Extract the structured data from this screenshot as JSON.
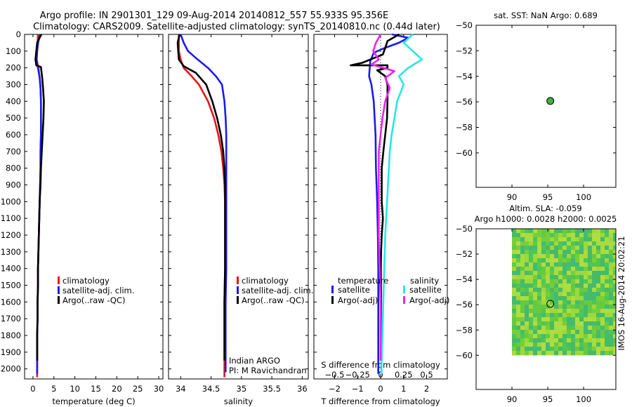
{
  "header": {
    "title_line1": "Argo profile: IN 2901301_129 09-Aug-2014 20140812_557 55.933S 95.356E",
    "title_line2": "Climatology: CARS2009. Satellite-adjusted climatology: synTS_20140810.nc (0.44d later)"
  },
  "colors": {
    "climatology": "#e8141a",
    "satellite": "#1a1aee",
    "argo": "#000000",
    "sat_diff": "#28e6e6",
    "argo_diff": "#ee22ee",
    "marker": "#3cb43c"
  },
  "chart_data": [
    {
      "id": "temperature",
      "type": "line",
      "xlabel": "temperature (deg C)",
      "ylabel": "",
      "xlim": [
        -2,
        31
      ],
      "ylim": [
        2060,
        0
      ],
      "xticks": [
        0,
        5,
        10,
        15,
        20,
        25,
        30
      ],
      "yticks": [
        0,
        100,
        200,
        300,
        400,
        500,
        600,
        700,
        800,
        900,
        1000,
        1100,
        1200,
        1300,
        1400,
        1500,
        1600,
        1700,
        1800,
        1900,
        2000
      ],
      "legend": [
        "climatology",
        "satellite-adj. clim.",
        "Argo(..raw -QC)"
      ],
      "legend_position": "lower-center",
      "series": [
        {
          "name": "climatology",
          "color_key": "climatology",
          "points": [
            [
              1.2,
              0
            ],
            [
              1.1,
              50
            ],
            [
              1.0,
              100
            ],
            [
              0.9,
              150
            ],
            [
              1.3,
              200
            ],
            [
              1.6,
              260
            ],
            [
              1.8,
              320
            ],
            [
              1.9,
              400
            ],
            [
              1.9,
              500
            ],
            [
              1.9,
              600
            ],
            [
              1.8,
              700
            ],
            [
              1.8,
              800
            ],
            [
              1.7,
              900
            ],
            [
              1.6,
              1000
            ],
            [
              1.5,
              1100
            ],
            [
              1.4,
              1200
            ],
            [
              1.3,
              1300
            ],
            [
              1.2,
              1400
            ],
            [
              1.2,
              1500
            ],
            [
              1.1,
              1600
            ],
            [
              1.1,
              1700
            ],
            [
              1.0,
              1800
            ],
            [
              1.0,
              1900
            ],
            [
              1.0,
              2000
            ],
            [
              1.0,
              2050
            ]
          ]
        },
        {
          "name": "satellite-adj. clim.",
          "color_key": "satellite",
          "points": [
            [
              1.7,
              0
            ],
            [
              1.3,
              40
            ],
            [
              1.0,
              100
            ],
            [
              0.8,
              160
            ],
            [
              1.2,
              200
            ],
            [
              1.6,
              260
            ],
            [
              1.8,
              320
            ],
            [
              1.9,
              400
            ],
            [
              1.9,
              500
            ],
            [
              1.9,
              600
            ],
            [
              1.8,
              700
            ],
            [
              1.8,
              800
            ],
            [
              1.7,
              900
            ],
            [
              1.6,
              1000
            ],
            [
              1.5,
              1100
            ],
            [
              1.4,
              1200
            ],
            [
              1.3,
              1300
            ],
            [
              1.2,
              1400
            ],
            [
              1.2,
              1500
            ],
            [
              1.1,
              1600
            ],
            [
              1.1,
              1700
            ],
            [
              1.0,
              1800
            ],
            [
              1.0,
              1900
            ],
            [
              1.0,
              2000
            ],
            [
              1.0,
              2030
            ]
          ]
        },
        {
          "name": "Argo(..raw -QC)",
          "color_key": "argo",
          "points": [
            [
              2.0,
              0
            ],
            [
              1.0,
              50
            ],
            [
              0.8,
              100
            ],
            [
              0.6,
              150
            ],
            [
              0.8,
              185
            ],
            [
              1.9,
              195
            ],
            [
              2.2,
              260
            ],
            [
              2.4,
              320
            ],
            [
              2.6,
              400
            ],
            [
              2.5,
              500
            ],
            [
              2.3,
              600
            ],
            [
              2.1,
              700
            ],
            [
              1.9,
              800
            ],
            [
              1.8,
              900
            ],
            [
              1.6,
              1000
            ],
            [
              1.5,
              1100
            ],
            [
              1.4,
              1200
            ],
            [
              1.3,
              1300
            ],
            [
              1.2,
              1400
            ],
            [
              1.2,
              1500
            ],
            [
              1.1,
              1600
            ],
            [
              1.1,
              1700
            ],
            [
              1.0,
              1800
            ],
            [
              1.0,
              1900
            ],
            [
              1.0,
              1950
            ]
          ]
        }
      ]
    },
    {
      "id": "salinity",
      "type": "line",
      "xlabel": "salinity",
      "ylabel": "",
      "xlim": [
        33.8,
        36.1
      ],
      "ylim": [
        2060,
        0
      ],
      "xticks": [
        34,
        34.5,
        35,
        35.5,
        36
      ],
      "legend": [
        "climatology",
        "satellite-adj. clim.",
        "Argo(..raw -QC)"
      ],
      "legend_position": "lower-right",
      "annotation": [
        "Indian ARGO",
        "PI: M Ravichandran"
      ],
      "series": [
        {
          "name": "climatology",
          "color_key": "climatology",
          "points": [
            [
              33.97,
              0
            ],
            [
              33.97,
              100
            ],
            [
              34.0,
              150
            ],
            [
              34.05,
              200
            ],
            [
              34.18,
              250
            ],
            [
              34.3,
              300
            ],
            [
              34.45,
              400
            ],
            [
              34.55,
              500
            ],
            [
              34.62,
              600
            ],
            [
              34.67,
              700
            ],
            [
              34.7,
              800
            ],
            [
              34.72,
              900
            ],
            [
              34.73,
              1000
            ],
            [
              34.73,
              1200
            ],
            [
              34.73,
              1400
            ],
            [
              34.72,
              1600
            ],
            [
              34.72,
              1800
            ],
            [
              34.72,
              2000
            ],
            [
              34.72,
              2050
            ]
          ]
        },
        {
          "name": "satellite-adj. clim.",
          "color_key": "satellite",
          "points": [
            [
              34.0,
              0
            ],
            [
              34.05,
              50
            ],
            [
              34.12,
              100
            ],
            [
              34.28,
              150
            ],
            [
              34.45,
              200
            ],
            [
              34.58,
              250
            ],
            [
              34.68,
              300
            ],
            [
              34.72,
              400
            ],
            [
              34.74,
              500
            ],
            [
              34.75,
              600
            ],
            [
              34.75,
              700
            ],
            [
              34.75,
              800
            ],
            [
              34.75,
              900
            ],
            [
              34.75,
              1000
            ],
            [
              34.75,
              1200
            ],
            [
              34.75,
              1400
            ],
            [
              34.74,
              1600
            ],
            [
              34.74,
              1800
            ],
            [
              34.74,
              2000
            ],
            [
              34.74,
              2020
            ]
          ]
        },
        {
          "name": "Argo(..raw -QC)",
          "color_key": "argo",
          "points": [
            [
              33.98,
              0
            ],
            [
              33.95,
              50
            ],
            [
              33.96,
              100
            ],
            [
              33.97,
              150
            ],
            [
              34.05,
              190
            ],
            [
              34.25,
              230
            ],
            [
              34.42,
              300
            ],
            [
              34.52,
              400
            ],
            [
              34.6,
              500
            ],
            [
              34.66,
              600
            ],
            [
              34.7,
              700
            ],
            [
              34.72,
              800
            ],
            [
              34.73,
              900
            ],
            [
              34.73,
              1000
            ],
            [
              34.73,
              1200
            ],
            [
              34.73,
              1400
            ],
            [
              34.72,
              1600
            ],
            [
              34.72,
              1800
            ],
            [
              34.72,
              1950
            ]
          ]
        }
      ]
    },
    {
      "id": "difference",
      "type": "line",
      "xlabel": "T difference from climatology",
      "xlabel_top": "S difference from climatology",
      "ylabel": "",
      "xlim": [
        -2.9,
        2.9
      ],
      "ylim": [
        2060,
        0
      ],
      "xticks": [
        -2,
        -1,
        0,
        1,
        2
      ],
      "xticks_top": [
        "-0.5",
        "-0.25",
        "0",
        "0.25",
        "0.5"
      ],
      "legend_headers": [
        "temperature",
        "salinity"
      ],
      "legend": [
        "satellite",
        "Argo(-adj)",
        "satellite",
        "Argo(-adj)"
      ],
      "legend_position": "lower-center",
      "series": [
        {
          "name": "satellite",
          "group": "temperature",
          "color_key": "satellite",
          "points": [
            [
              0.5,
              0
            ],
            [
              1.2,
              20
            ],
            [
              0.8,
              50
            ],
            [
              0.2,
              80
            ],
            [
              -0.3,
              110
            ],
            [
              -0.45,
              160
            ],
            [
              -0.5,
              250
            ],
            [
              -0.4,
              300
            ],
            [
              -0.3,
              400
            ],
            [
              -0.22,
              600
            ],
            [
              -0.2,
              800
            ],
            [
              -0.15,
              1000
            ],
            [
              -0.12,
              1200
            ],
            [
              -0.1,
              1400
            ],
            [
              -0.1,
              1600
            ],
            [
              -0.1,
              1800
            ],
            [
              -0.1,
              2000
            ],
            [
              -0.1,
              2030
            ]
          ]
        },
        {
          "name": "Argo(-adj)",
          "group": "temperature",
          "color_key": "argo",
          "points": [
            [
              0.8,
              0
            ],
            [
              0.3,
              40
            ],
            [
              0.2,
              80
            ],
            [
              0.1,
              120
            ],
            [
              -0.8,
              170
            ],
            [
              -1.3,
              185
            ],
            [
              0.3,
              185
            ],
            [
              0.3,
              200
            ],
            [
              -0.15,
              215
            ],
            [
              0.2,
              250
            ],
            [
              0.3,
              300
            ],
            [
              0.3,
              400
            ],
            [
              0.28,
              500
            ],
            [
              0.2,
              600
            ],
            [
              0.12,
              700
            ],
            [
              0.05,
              800
            ],
            [
              0.05,
              900
            ],
            [
              0.05,
              1000
            ],
            [
              0.1,
              1100
            ],
            [
              0.05,
              1200
            ],
            [
              0.02,
              1300
            ],
            [
              0.01,
              1400
            ],
            [
              0.02,
              1600
            ],
            [
              0.01,
              1800
            ],
            [
              0.01,
              1950
            ]
          ]
        },
        {
          "name": "satellite",
          "group": "salinity",
          "color_key": "sat_diff",
          "points": [
            [
              0.35,
              0
            ],
            [
              0.25,
              50
            ],
            [
              0.35,
              100
            ],
            [
              0.45,
              150
            ],
            [
              0.3,
              200
            ],
            [
              0.2,
              250
            ],
            [
              0.25,
              300
            ],
            [
              0.18,
              400
            ],
            [
              0.15,
              500
            ],
            [
              0.12,
              600
            ],
            [
              0.1,
              700
            ],
            [
              0.09,
              800
            ],
            [
              0.07,
              1000
            ],
            [
              0.05,
              1200
            ],
            [
              0.04,
              1400
            ],
            [
              0.03,
              1600
            ],
            [
              0.02,
              1800
            ],
            [
              0.01,
              2000
            ],
            [
              0.01,
              2030
            ]
          ]
        },
        {
          "name": "Argo(-adj)",
          "group": "salinity",
          "color_key": "argo_diff",
          "points": [
            [
              0.0,
              0
            ],
            [
              -0.05,
              50
            ],
            [
              -0.08,
              100
            ],
            [
              -0.02,
              150
            ],
            [
              -0.1,
              180
            ],
            [
              0.15,
              220
            ],
            [
              0.05,
              260
            ],
            [
              0.1,
              320
            ],
            [
              0.05,
              400
            ],
            [
              0.02,
              500
            ],
            [
              0.0,
              600
            ],
            [
              -0.02,
              700
            ],
            [
              -0.02,
              800
            ],
            [
              -0.02,
              1000
            ],
            [
              -0.02,
              1200
            ],
            [
              -0.01,
              1400
            ],
            [
              0.0,
              1600
            ],
            [
              0.0,
              1800
            ],
            [
              0.0,
              1950
            ]
          ]
        }
      ]
    },
    {
      "id": "sst_map",
      "type": "scatter",
      "title": "sat. SST: NaN Argo: 0.689",
      "xlim": [
        85,
        104.5
      ],
      "ylim": [
        -50,
        -62.7
      ],
      "xticks": [
        90,
        95,
        100
      ],
      "yticks": [
        -50,
        -52,
        -54,
        -56,
        -58,
        -60
      ],
      "points": [
        {
          "x": 95.356,
          "y": -55.933
        }
      ]
    },
    {
      "id": "sla_map",
      "type": "heatmap",
      "title_line1": "Altim. SLA: -0.059",
      "title_line2": "Argo h1000: 0.0028 h2000: 0.0025",
      "xlim": [
        85,
        104.5
      ],
      "ylim": [
        -50,
        -62.7
      ],
      "xticks": [
        90,
        95,
        100
      ],
      "yticks": [
        -50,
        -52,
        -54,
        -56,
        -58,
        -60
      ],
      "field_lon": [
        90,
        104.5
      ],
      "field_lat": [
        -50,
        -60
      ],
      "points": [
        {
          "x": 95.356,
          "y": -55.933
        }
      ],
      "side_label": "IMOS 16-Aug-2014 20:02:21"
    }
  ]
}
